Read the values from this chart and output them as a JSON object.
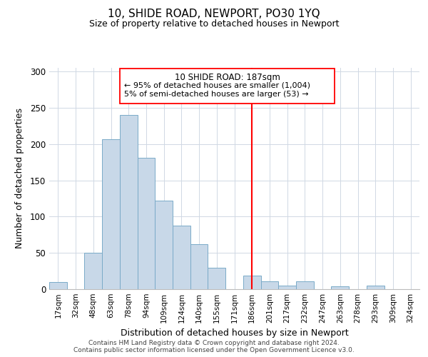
{
  "title": "10, SHIDE ROAD, NEWPORT, PO30 1YQ",
  "subtitle": "Size of property relative to detached houses in Newport",
  "xlabel": "Distribution of detached houses by size in Newport",
  "ylabel": "Number of detached properties",
  "bar_labels": [
    "17sqm",
    "32sqm",
    "48sqm",
    "63sqm",
    "78sqm",
    "94sqm",
    "109sqm",
    "124sqm",
    "140sqm",
    "155sqm",
    "171sqm",
    "186sqm",
    "201sqm",
    "217sqm",
    "232sqm",
    "247sqm",
    "263sqm",
    "278sqm",
    "293sqm",
    "309sqm",
    "324sqm"
  ],
  "bar_values": [
    10,
    0,
    50,
    207,
    240,
    181,
    122,
    88,
    62,
    30,
    0,
    19,
    11,
    5,
    11,
    0,
    4,
    0,
    5,
    0,
    0
  ],
  "bar_color": "#c8d8e8",
  "bar_edge_color": "#7aaac8",
  "vline_x_index": 11,
  "vline_color": "red",
  "annotation_title": "10 SHIDE ROAD: 187sqm",
  "annotation_line1": "← 95% of detached houses are smaller (1,004)",
  "annotation_line2": "5% of semi-detached houses are larger (53) →",
  "annotation_box_color": "red",
  "ylim": [
    0,
    305
  ],
  "yticks": [
    0,
    50,
    100,
    150,
    200,
    250,
    300
  ],
  "footer1": "Contains HM Land Registry data © Crown copyright and database right 2024.",
  "footer2": "Contains public sector information licensed under the Open Government Licence v3.0."
}
